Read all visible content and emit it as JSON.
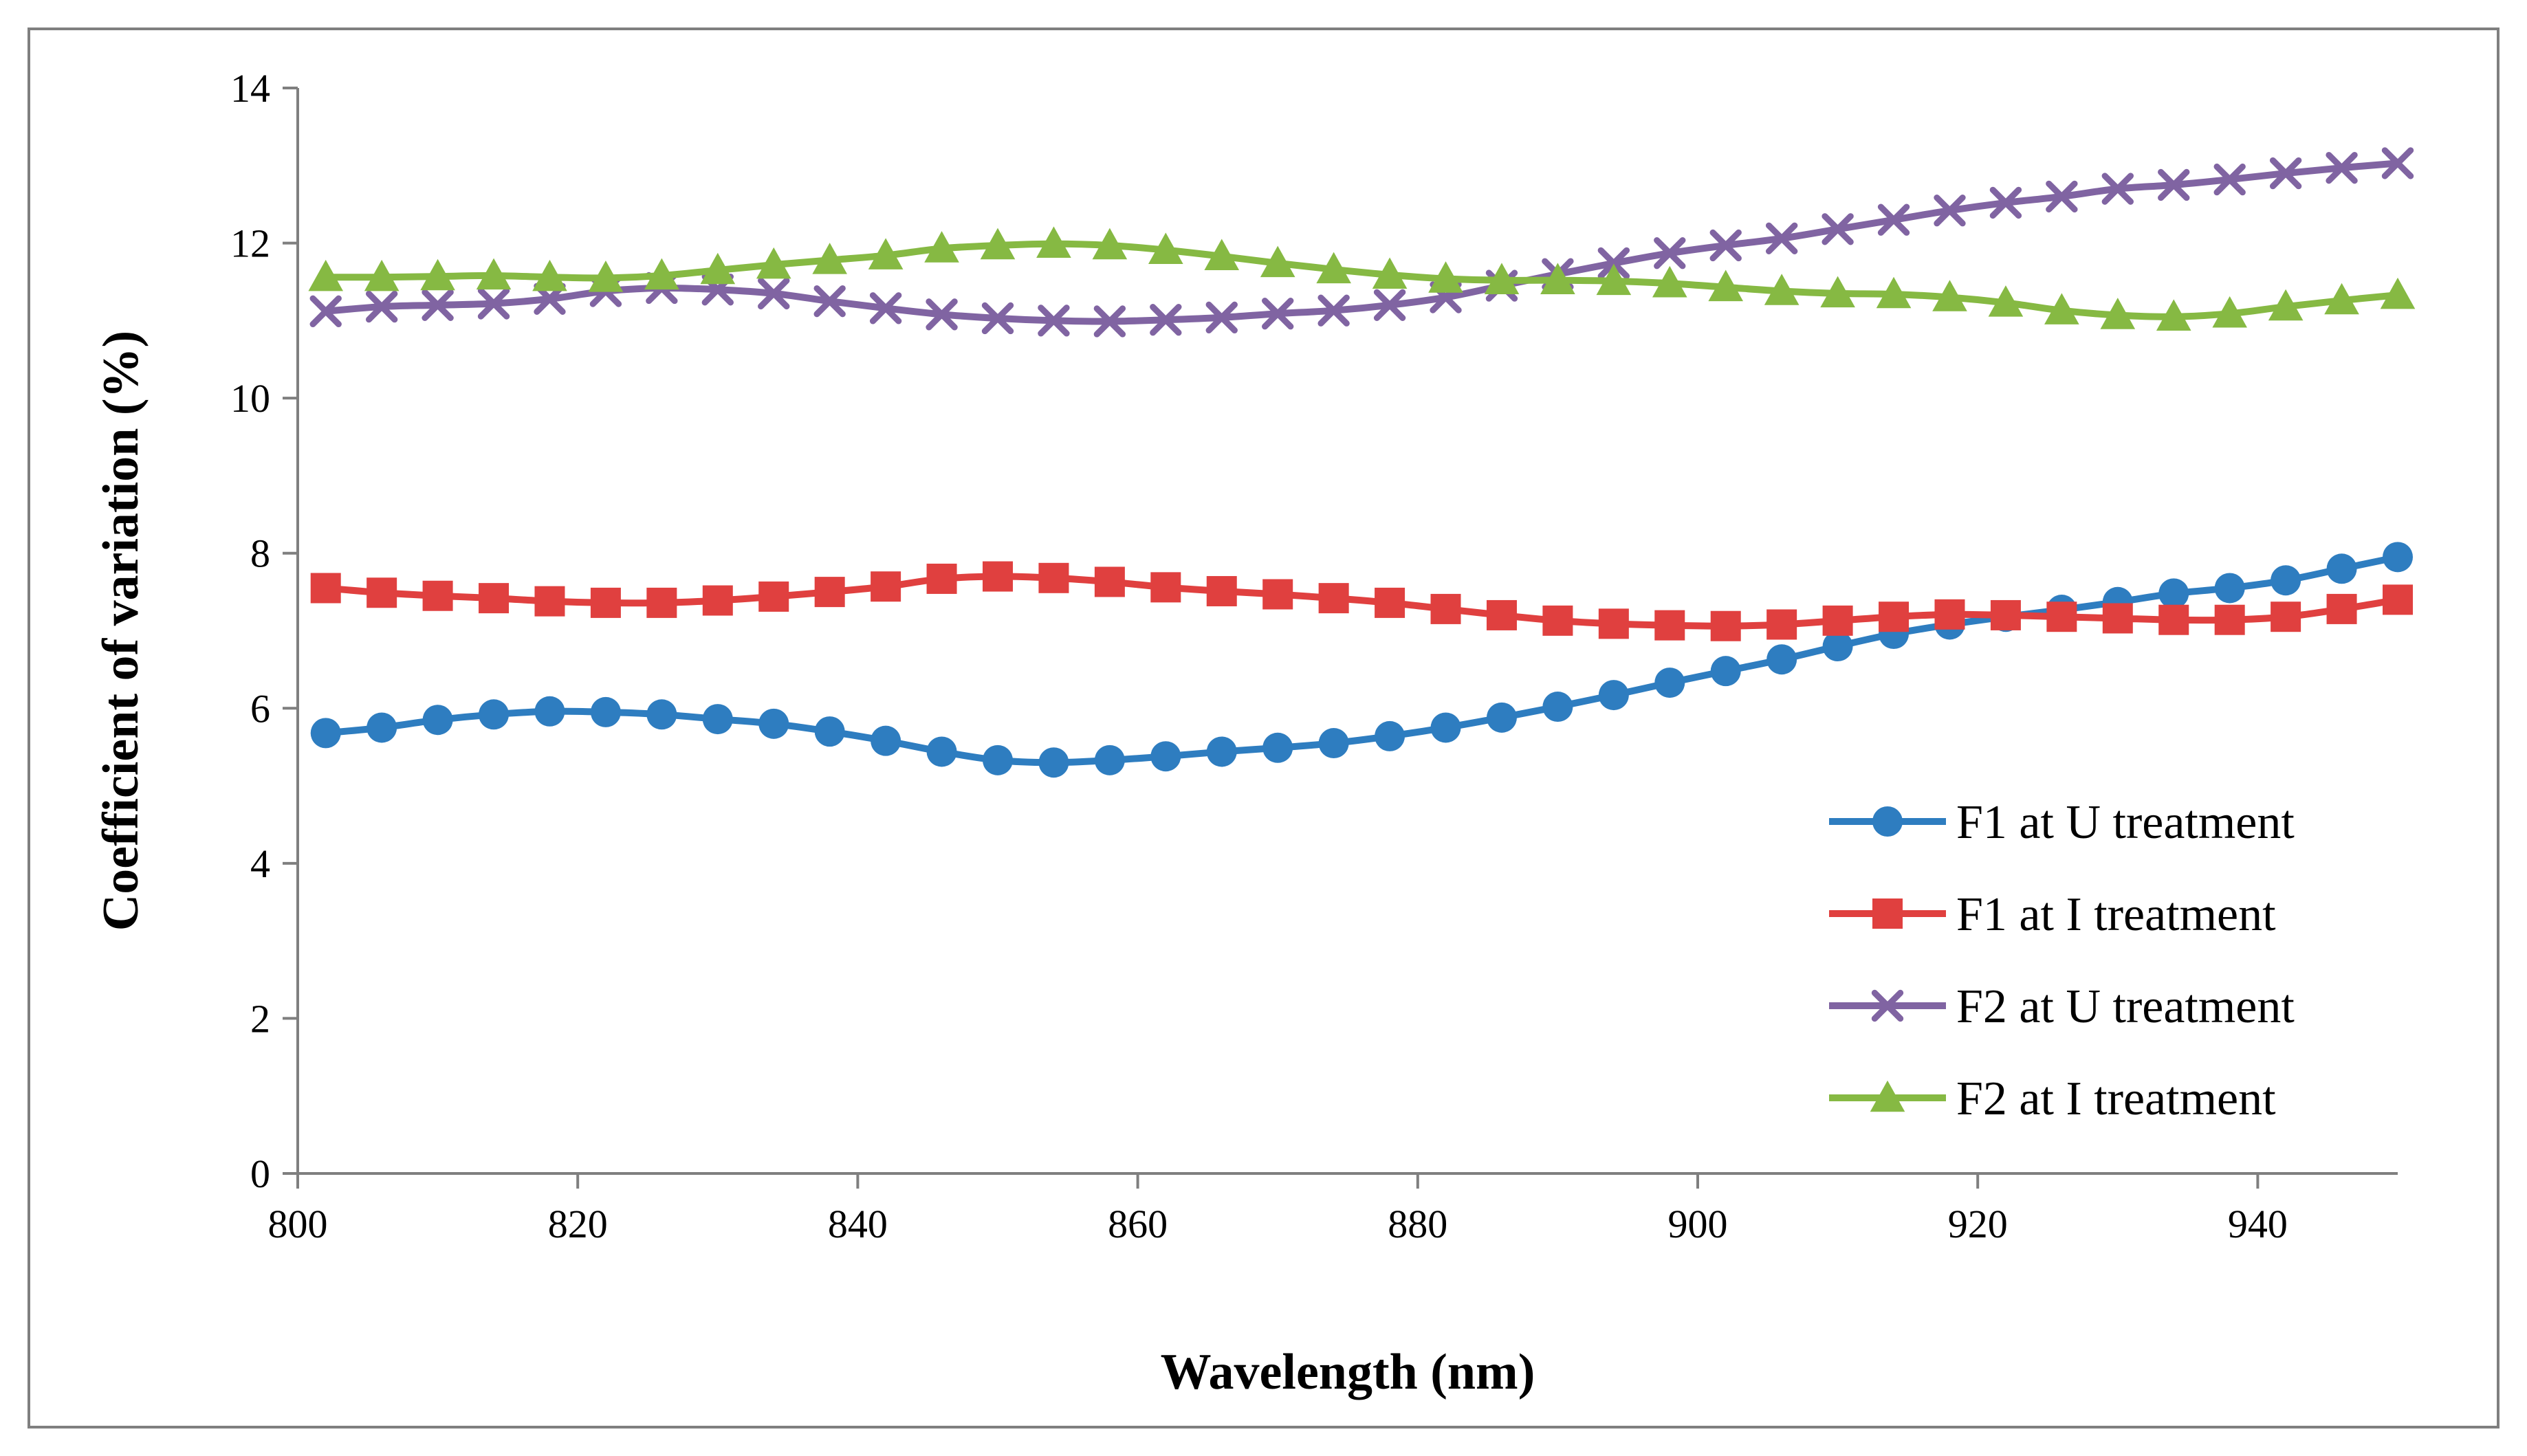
{
  "chart_data": {
    "type": "line",
    "title": "",
    "xlabel": "Wavelength (nm)",
    "ylabel": "Coefficient of variation (%)",
    "xlim": [
      800,
      950
    ],
    "ylim": [
      0,
      14
    ],
    "xticks": [
      800,
      820,
      840,
      860,
      880,
      900,
      920,
      940
    ],
    "yticks": [
      0,
      2,
      4,
      6,
      8,
      10,
      12,
      14
    ],
    "x_tick_labels": [
      "800",
      "820",
      "840",
      "860",
      "880",
      "900",
      "920",
      "940"
    ],
    "y_tick_labels": [
      "0",
      "2",
      "4",
      "6",
      "8",
      "10",
      "12",
      "14"
    ],
    "grid": false,
    "legend_position": "bottom-right",
    "x": [
      802,
      806,
      810,
      814,
      818,
      822,
      826,
      830,
      834,
      838,
      842,
      846,
      850,
      854,
      858,
      862,
      866,
      870,
      874,
      878,
      882,
      886,
      890,
      894,
      898,
      902,
      906,
      910,
      914,
      918,
      922,
      926,
      930,
      934,
      938,
      942,
      946,
      950
    ],
    "series": [
      {
        "name": "F1 at U treatment",
        "color": "#2E7DC0",
        "marker": "circle",
        "values": [
          5.68,
          5.75,
          5.85,
          5.92,
          5.96,
          5.95,
          5.92,
          5.86,
          5.8,
          5.7,
          5.58,
          5.44,
          5.33,
          5.3,
          5.33,
          5.38,
          5.44,
          5.49,
          5.55,
          5.64,
          5.75,
          5.88,
          6.02,
          6.17,
          6.33,
          6.48,
          6.63,
          6.8,
          6.96,
          7.08,
          7.18,
          7.27,
          7.37,
          7.48,
          7.55,
          7.65,
          7.8,
          7.95
        ]
      },
      {
        "name": "F1 at I treatment",
        "color": "#E0403F",
        "marker": "square",
        "values": [
          7.55,
          7.49,
          7.45,
          7.42,
          7.38,
          7.36,
          7.36,
          7.39,
          7.44,
          7.5,
          7.57,
          7.67,
          7.7,
          7.68,
          7.63,
          7.56,
          7.51,
          7.47,
          7.42,
          7.36,
          7.28,
          7.2,
          7.13,
          7.09,
          7.07,
          7.06,
          7.08,
          7.13,
          7.18,
          7.21,
          7.2,
          7.18,
          7.16,
          7.14,
          7.14,
          7.18,
          7.28,
          7.4
        ]
      },
      {
        "name": "F2 at U treatment",
        "color": "#8064A2",
        "marker": "x",
        "values": [
          11.12,
          11.18,
          11.2,
          11.22,
          11.28,
          11.38,
          11.42,
          11.4,
          11.35,
          11.25,
          11.16,
          11.08,
          11.03,
          11.0,
          10.99,
          11.01,
          11.04,
          11.09,
          11.13,
          11.2,
          11.3,
          11.45,
          11.6,
          11.74,
          11.87,
          11.97,
          12.06,
          12.18,
          12.3,
          12.42,
          12.52,
          12.6,
          12.7,
          12.75,
          12.82,
          12.9,
          12.97,
          13.03
        ]
      },
      {
        "name": "F2 at I treatment",
        "color": "#86B943",
        "marker": "triangle",
        "values": [
          11.56,
          11.56,
          11.57,
          11.58,
          11.56,
          11.55,
          11.58,
          11.65,
          11.72,
          11.78,
          11.84,
          11.93,
          11.97,
          11.99,
          11.97,
          11.91,
          11.83,
          11.74,
          11.66,
          11.59,
          11.54,
          11.52,
          11.52,
          11.51,
          11.48,
          11.43,
          11.38,
          11.35,
          11.34,
          11.3,
          11.23,
          11.13,
          11.07,
          11.05,
          11.09,
          11.18,
          11.26,
          11.33
        ]
      }
    ]
  }
}
